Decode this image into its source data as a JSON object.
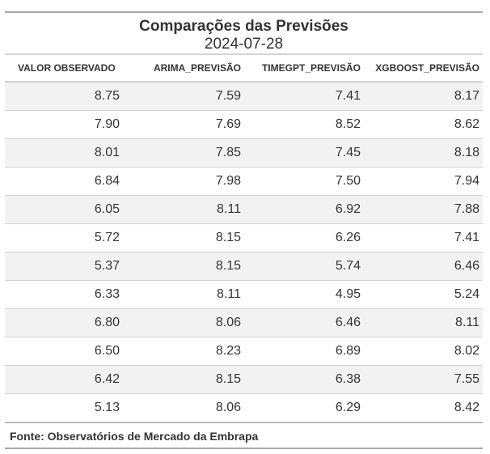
{
  "chart_data": {
    "type": "table",
    "title": "Comparações das Previsões",
    "subtitle": "2024-07-28",
    "columns": [
      "VALOR OBSERVADO",
      "ARIMA_PREVISÃO",
      "TIMEGPT_PREVISÃO",
      "XGBOOST_PREVISÃO"
    ],
    "rows": [
      [
        "8.75",
        "7.59",
        "7.41",
        "8.17"
      ],
      [
        "7.90",
        "7.69",
        "8.52",
        "8.62"
      ],
      [
        "8.01",
        "7.85",
        "7.45",
        "8.18"
      ],
      [
        "6.84",
        "7.98",
        "7.50",
        "7.94"
      ],
      [
        "6.05",
        "8.11",
        "6.92",
        "7.88"
      ],
      [
        "5.72",
        "8.15",
        "6.26",
        "7.41"
      ],
      [
        "5.37",
        "8.15",
        "5.74",
        "6.46"
      ],
      [
        "6.33",
        "8.11",
        "4.95",
        "5.24"
      ],
      [
        "6.80",
        "8.06",
        "6.46",
        "8.11"
      ],
      [
        "6.50",
        "8.23",
        "6.89",
        "8.02"
      ],
      [
        "6.42",
        "8.15",
        "6.38",
        "7.55"
      ],
      [
        "5.13",
        "8.06",
        "6.29",
        "8.42"
      ]
    ],
    "source": "Fonte: Observatórios de Mercado da Embrapa"
  },
  "colors": {
    "text": "#333333",
    "stripe": "#f2f2f2",
    "rule": "#a8a8a8",
    "divider": "#d3d3d3"
  }
}
